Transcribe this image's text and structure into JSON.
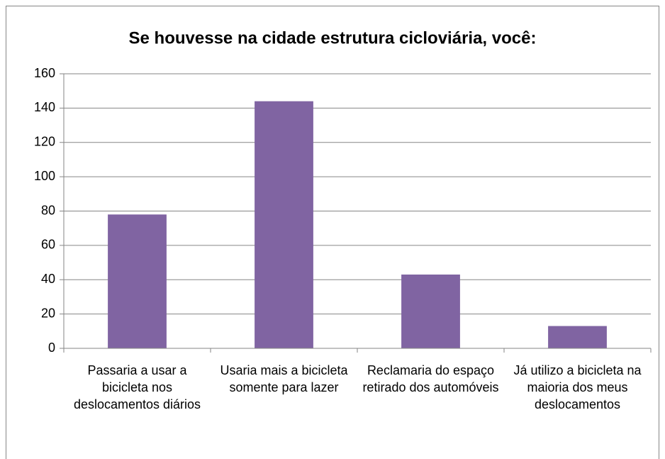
{
  "chart_data": {
    "type": "bar",
    "title": "Se houvesse na cidade estrutura cicloviária, você:",
    "categories": [
      "Passaria a usar a bicicleta nos deslocamentos diários",
      "Usaria mais a bicicleta somente para lazer",
      "Reclamaria do espaço retirado dos automóveis",
      "Já utilizo a bicicleta na maioria dos meus deslocamentos"
    ],
    "values": [
      78,
      144,
      43,
      13
    ],
    "color": "#8064a2",
    "ylim": [
      0,
      160
    ],
    "yticks": [
      0,
      20,
      40,
      60,
      80,
      100,
      120,
      140,
      160
    ],
    "grid": true
  }
}
